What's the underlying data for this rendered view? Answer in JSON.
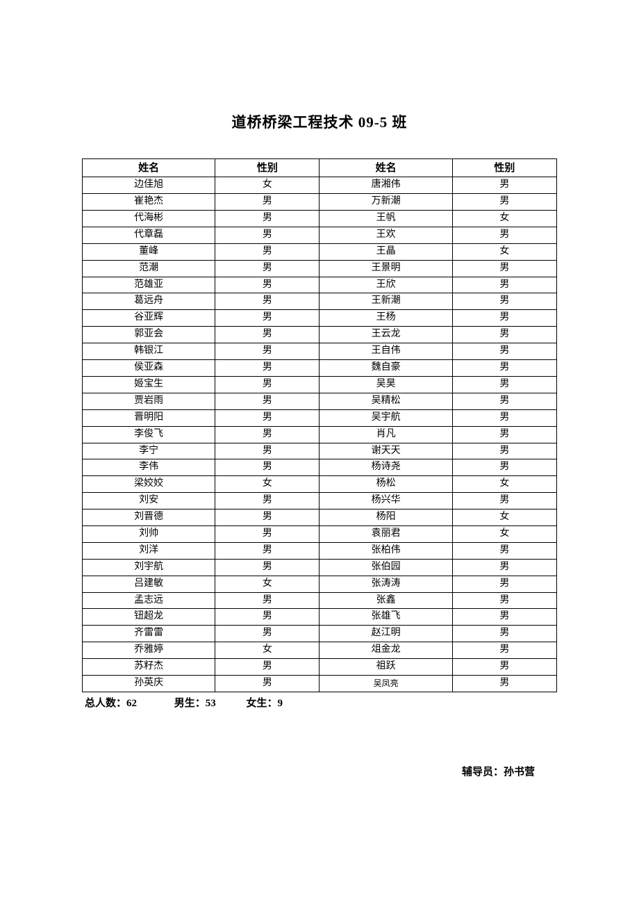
{
  "title": "道桥桥梁工程技术 09-5 班",
  "headers": {
    "name": "姓名",
    "gender": "性别"
  },
  "rows": [
    {
      "n1": "边佳旭",
      "g1": "女",
      "n2": "唐湘伟",
      "g2": "男"
    },
    {
      "n1": "崔艳杰",
      "g1": "男",
      "n2": "万新潮",
      "g2": "男"
    },
    {
      "n1": "代海彬",
      "g1": "男",
      "n2": "王帆",
      "g2": "女"
    },
    {
      "n1": "代章磊",
      "g1": "男",
      "n2": "王欢",
      "g2": "男"
    },
    {
      "n1": "董峰",
      "g1": "男",
      "n2": "王晶",
      "g2": "女"
    },
    {
      "n1": "范潮",
      "g1": "男",
      "n2": "王景明",
      "g2": "男"
    },
    {
      "n1": "范雄亚",
      "g1": "男",
      "n2": "王欣",
      "g2": "男"
    },
    {
      "n1": "葛远舟",
      "g1": "男",
      "n2": "王新潮",
      "g2": "男"
    },
    {
      "n1": "谷亚辉",
      "g1": "男",
      "n2": "王杨",
      "g2": "男"
    },
    {
      "n1": "郭亚会",
      "g1": "男",
      "n2": "王云龙",
      "g2": "男"
    },
    {
      "n1": "韩银江",
      "g1": "男",
      "n2": "王自伟",
      "g2": "男"
    },
    {
      "n1": "侯亚森",
      "g1": "男",
      "n2": "魏自豪",
      "g2": "男"
    },
    {
      "n1": "姬宝生",
      "g1": "男",
      "n2": "吴昊",
      "g2": "男"
    },
    {
      "n1": "贾岩雨",
      "g1": "男",
      "n2": "吴精松",
      "g2": "男"
    },
    {
      "n1": "晋明阳",
      "g1": "男",
      "n2": "吴宇航",
      "g2": "男"
    },
    {
      "n1": "李俊飞",
      "g1": "男",
      "n2": "肖凡",
      "g2": "男"
    },
    {
      "n1": "李宁",
      "g1": "男",
      "n2": "谢天天",
      "g2": "男"
    },
    {
      "n1": "李伟",
      "g1": "男",
      "n2": "杨诗尧",
      "g2": "男"
    },
    {
      "n1": "梁姣姣",
      "g1": "女",
      "n2": "杨松",
      "g2": "女"
    },
    {
      "n1": "刘安",
      "g1": "男",
      "n2": "杨兴华",
      "g2": "男"
    },
    {
      "n1": "刘晋德",
      "g1": "男",
      "n2": "杨阳",
      "g2": "女"
    },
    {
      "n1": "刘帅",
      "g1": "男",
      "n2": "袁丽君",
      "g2": "女"
    },
    {
      "n1": "刘洋",
      "g1": "男",
      "n2": "张柏伟",
      "g2": "男"
    },
    {
      "n1": "刘宇航",
      "g1": "男",
      "n2": "张伯园",
      "g2": "男"
    },
    {
      "n1": "吕建敏",
      "g1": "女",
      "n2": "张涛涛",
      "g2": "男"
    },
    {
      "n1": "孟志远",
      "g1": "男",
      "n2": "张鑫",
      "g2": "男"
    },
    {
      "n1": "钮超龙",
      "g1": "男",
      "n2": "张雄飞",
      "g2": "男"
    },
    {
      "n1": "齐雷雷",
      "g1": "男",
      "n2": "赵江明",
      "g2": "男"
    },
    {
      "n1": "乔雅婷",
      "g1": "女",
      "n2": "俎金龙",
      "g2": "男"
    },
    {
      "n1": "苏籽杰",
      "g1": "男",
      "n2": "祖跃",
      "g2": "男"
    },
    {
      "n1": "孙英庆",
      "g1": "男",
      "n2": "吴凤亮",
      "g2": "男",
      "smaller": true
    }
  ],
  "summary": {
    "total_label": "总人数：",
    "total_value": "62",
    "male_label": "男生：",
    "male_value": "53",
    "female_label": "女生：",
    "female_value": "9"
  },
  "advisor": {
    "label": "辅导员：",
    "name": "孙书营"
  },
  "style": {
    "background_color": "#ffffff",
    "border_color": "#000000",
    "title_fontsize": 21,
    "body_fontsize": 14,
    "header_fontsize": 15,
    "summary_fontsize": 15,
    "advisor_fontsize": 15
  }
}
